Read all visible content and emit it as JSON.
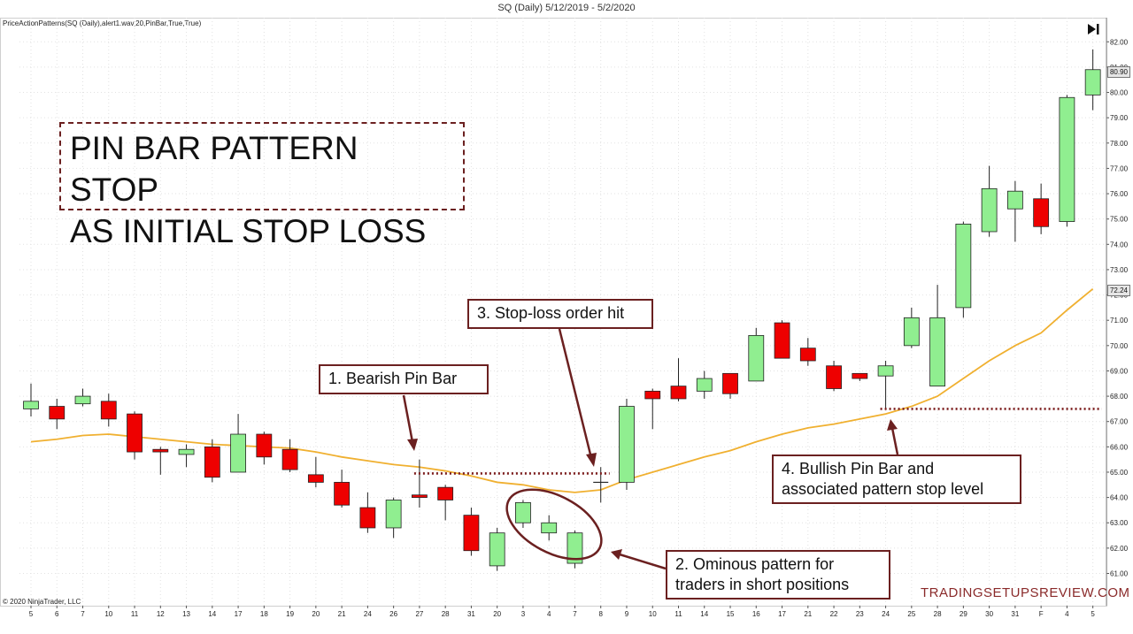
{
  "header": {
    "title": "SQ (Daily)  5/12/2019 - 5/2/2020",
    "indicator_label": "PriceActionPatterns(SQ (Daily),alert1.wav,20,PinBar,True,True)",
    "copyright": "© 2020 NinjaTrader, LLC",
    "watermark": "TRADINGSETUPSREVIEW.COM"
  },
  "overlay": {
    "title_line1": "PIN BAR PATTERN STOP",
    "title_line2": "AS INITIAL STOP LOSS"
  },
  "callouts": {
    "c1": {
      "line1": "1. Bearish Pin Bar"
    },
    "c2": {
      "line1": "2. Ominous pattern for",
      "line2": "traders in short positions"
    },
    "c3": {
      "line1": "3. Stop-loss order hit"
    },
    "c4": {
      "line1": "4. Bullish Pin Bar and",
      "line2": "associated pattern stop level"
    }
  },
  "price_tags": {
    "last": "80.90",
    "ma": "72.24"
  },
  "colors": {
    "up": "#90ee90",
    "down": "#ee0000",
    "ma": "#f0b030",
    "annotation": "#6b2020"
  },
  "chart_data": {
    "type": "candlestick",
    "title": "SQ (Daily)  5/12/2019 - 5/2/2020",
    "ylim": [
      60.5,
      82.5
    ],
    "yticks": [
      61,
      62,
      63,
      64,
      65,
      66,
      67,
      68,
      69,
      70,
      71,
      72,
      73,
      74,
      75,
      76,
      77,
      78,
      79,
      80,
      81,
      82
    ],
    "x": [
      "5",
      "6",
      "7",
      "10",
      "11",
      "12",
      "13",
      "14",
      "17",
      "18",
      "19",
      "20",
      "21",
      "24",
      "26",
      "27",
      "28",
      "31",
      "20",
      "3",
      "4",
      "7",
      "8",
      "9",
      "10",
      "11",
      "14",
      "15",
      "16",
      "17",
      "21",
      "22",
      "23",
      "24",
      "25",
      "28",
      "29",
      "30",
      "31",
      "F",
      "4",
      "5"
    ],
    "candles": [
      {
        "o": 67.5,
        "h": 68.5,
        "l": 67.2,
        "c": 67.8
      },
      {
        "o": 67.6,
        "h": 67.9,
        "l": 66.7,
        "c": 67.1
      },
      {
        "o": 67.7,
        "h": 68.3,
        "l": 67.6,
        "c": 68.0
      },
      {
        "o": 67.8,
        "h": 68.1,
        "l": 66.8,
        "c": 67.1
      },
      {
        "o": 67.3,
        "h": 67.4,
        "l": 65.5,
        "c": 65.8
      },
      {
        "o": 65.9,
        "h": 66.0,
        "l": 64.9,
        "c": 65.8
      },
      {
        "o": 65.7,
        "h": 66.1,
        "l": 65.2,
        "c": 65.9
      },
      {
        "o": 66.0,
        "h": 66.3,
        "l": 64.6,
        "c": 64.8
      },
      {
        "o": 65.0,
        "h": 67.3,
        "l": 65.0,
        "c": 66.5
      },
      {
        "o": 66.5,
        "h": 66.6,
        "l": 65.3,
        "c": 65.6
      },
      {
        "o": 65.9,
        "h": 66.3,
        "l": 65.0,
        "c": 65.1
      },
      {
        "o": 64.9,
        "h": 65.6,
        "l": 64.4,
        "c": 64.6
      },
      {
        "o": 64.6,
        "h": 65.1,
        "l": 63.6,
        "c": 63.7
      },
      {
        "o": 63.6,
        "h": 64.2,
        "l": 62.6,
        "c": 62.8
      },
      {
        "o": 62.8,
        "h": 64.0,
        "l": 62.4,
        "c": 63.9
      },
      {
        "o": 64.1,
        "h": 65.5,
        "l": 63.6,
        "c": 64.0
      },
      {
        "o": 64.4,
        "h": 64.5,
        "l": 63.1,
        "c": 63.9
      },
      {
        "o": 63.3,
        "h": 63.6,
        "l": 61.7,
        "c": 61.9
      },
      {
        "o": 61.3,
        "h": 62.8,
        "l": 61.1,
        "c": 62.6
      },
      {
        "o": 63.0,
        "h": 63.9,
        "l": 62.8,
        "c": 63.8
      },
      {
        "o": 62.6,
        "h": 63.3,
        "l": 62.3,
        "c": 63.0
      },
      {
        "o": 61.4,
        "h": 62.7,
        "l": 61.2,
        "c": 62.6
      },
      {
        "o": 64.6,
        "h": 65.2,
        "l": 63.8,
        "c": 64.6
      },
      {
        "o": 64.6,
        "h": 67.9,
        "l": 64.3,
        "c": 67.6
      },
      {
        "o": 68.2,
        "h": 68.3,
        "l": 66.7,
        "c": 67.9
      },
      {
        "o": 68.4,
        "h": 69.5,
        "l": 67.8,
        "c": 67.9
      },
      {
        "o": 68.2,
        "h": 69.0,
        "l": 67.9,
        "c": 68.7
      },
      {
        "o": 68.9,
        "h": 68.9,
        "l": 67.9,
        "c": 68.1
      },
      {
        "o": 68.6,
        "h": 70.7,
        "l": 68.6,
        "c": 70.4
      },
      {
        "o": 70.9,
        "h": 71.0,
        "l": 69.5,
        "c": 69.5
      },
      {
        "o": 69.9,
        "h": 70.3,
        "l": 69.2,
        "c": 69.4
      },
      {
        "o": 69.2,
        "h": 69.4,
        "l": 68.2,
        "c": 68.3
      },
      {
        "o": 68.9,
        "h": 68.9,
        "l": 68.6,
        "c": 68.7
      },
      {
        "o": 68.8,
        "h": 69.4,
        "l": 67.5,
        "c": 69.2
      },
      {
        "o": 70.0,
        "h": 71.5,
        "l": 69.9,
        "c": 71.1
      },
      {
        "o": 68.4,
        "h": 72.4,
        "l": 68.4,
        "c": 71.1
      },
      {
        "o": 71.5,
        "h": 74.9,
        "l": 71.1,
        "c": 74.8
      },
      {
        "o": 74.5,
        "h": 77.1,
        "l": 74.3,
        "c": 76.2
      },
      {
        "o": 75.4,
        "h": 76.5,
        "l": 74.1,
        "c": 76.1
      },
      {
        "o": 75.8,
        "h": 76.4,
        "l": 74.4,
        "c": 74.7
      },
      {
        "o": 74.9,
        "h": 79.9,
        "l": 74.7,
        "c": 79.8
      },
      {
        "o": 79.9,
        "h": 81.7,
        "l": 79.3,
        "c": 80.9
      }
    ],
    "moving_average": [
      66.2,
      66.3,
      66.45,
      66.5,
      66.4,
      66.3,
      66.2,
      66.1,
      66.05,
      66.0,
      65.95,
      65.8,
      65.6,
      65.45,
      65.3,
      65.2,
      65.05,
      64.85,
      64.6,
      64.5,
      64.3,
      64.2,
      64.3,
      64.7,
      65.0,
      65.3,
      65.6,
      65.85,
      66.2,
      66.5,
      66.75,
      66.9,
      67.1,
      67.3,
      67.6,
      68.0,
      68.7,
      69.4,
      70.0,
      70.5,
      71.4,
      72.24
    ],
    "stop_levels": [
      {
        "from": 15,
        "to": 22,
        "value": 64.95
      },
      {
        "from": 33,
        "to": 41,
        "value": 67.5
      }
    ]
  }
}
